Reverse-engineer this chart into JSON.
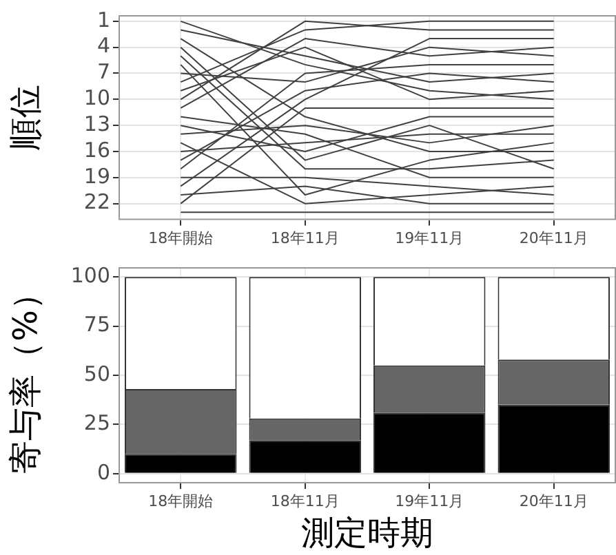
{
  "chart_data": [
    {
      "type": "line",
      "ylabel": "順位",
      "categories": [
        "18年開始",
        "18年11月",
        "19年11月",
        "20年11月"
      ],
      "ylim": [
        23.9,
        0.3
      ],
      "yticks": [
        1,
        4,
        7,
        10,
        13,
        16,
        19,
        22
      ],
      "grid": true,
      "legend": false,
      "marker": "none",
      "line_style": "solid",
      "series": [
        {
          "color": "#404040",
          "values": [
            1,
            6,
            9,
            10
          ]
        },
        {
          "color": "#404040",
          "values": [
            2,
            5,
            8,
            7
          ]
        },
        {
          "color": "#404040",
          "values": [
            3,
            12,
            16,
            16
          ]
        },
        {
          "color": "#404040",
          "values": [
            4,
            17,
            13,
            18
          ]
        },
        {
          "color": "#404040",
          "values": [
            5,
            18,
            18,
            17
          ]
        },
        {
          "color": "#404040",
          "values": [
            6,
            21,
            17,
            15
          ]
        },
        {
          "color": "#404040",
          "values": [
            7,
            8,
            4,
            5
          ]
        },
        {
          "color": "#404040",
          "values": [
            8,
            2,
            1,
            1
          ]
        },
        {
          "color": "#404040",
          "values": [
            9,
            4,
            10,
            9
          ]
        },
        {
          "color": "#404040",
          "values": [
            10,
            1,
            2,
            2
          ]
        },
        {
          "color": "#404040",
          "values": [
            11,
            3,
            5,
            4
          ]
        },
        {
          "color": "#404040",
          "values": [
            12,
            14,
            19,
            19
          ]
        },
        {
          "color": "#404040",
          "values": [
            13,
            16,
            12,
            12
          ]
        },
        {
          "color": "#404040",
          "values": [
            14,
            13,
            15,
            13
          ]
        },
        {
          "color": "#404040",
          "values": [
            15,
            22,
            21,
            20
          ]
        },
        {
          "color": "#404040",
          "values": [
            16,
            15,
            14,
            14
          ]
        },
        {
          "color": "#404040",
          "values": [
            17,
            9,
            7,
            8
          ]
        },
        {
          "color": "#404040",
          "values": [
            18,
            7,
            6,
            6
          ]
        },
        {
          "color": "#404040",
          "values": [
            19,
            19,
            20,
            21
          ]
        },
        {
          "color": "#404040",
          "values": [
            20,
            10,
            3,
            3
          ]
        },
        {
          "color": "#404040",
          "values": [
            21,
            20,
            22,
            22
          ]
        },
        {
          "color": "#404040",
          "values": [
            22,
            11,
            11,
            11
          ]
        },
        {
          "color": "#404040",
          "values": [
            23,
            23,
            23,
            23
          ]
        }
      ]
    },
    {
      "type": "bar",
      "stacked": true,
      "xlabel": "測定時期",
      "ylabel": "寄与率（%）",
      "categories": [
        "18年開始",
        "18年11月",
        "19年11月",
        "20年11月"
      ],
      "ylim": [
        -5,
        105
      ],
      "yticks": [
        0,
        25,
        50,
        75,
        100
      ],
      "grid": true,
      "legend": false,
      "series": [
        {
          "color": "#000000",
          "values": [
            10,
            17,
            31,
            35
          ]
        },
        {
          "color": "#666666",
          "values": [
            33,
            11,
            24,
            23
          ]
        },
        {
          "color": "#ffffff",
          "values": [
            57,
            72,
            45,
            42
          ]
        }
      ]
    }
  ]
}
